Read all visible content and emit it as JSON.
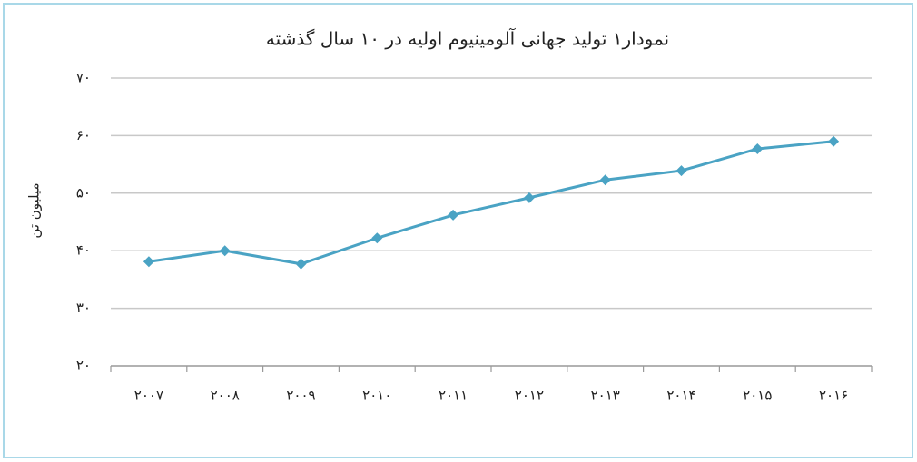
{
  "chart_data": {
    "type": "line",
    "title": "نمودار۱  تولید جهانی آلومینیوم اولیه در ۱۰ سال گذشته",
    "y_label": "میلیون تن",
    "categories": [
      "۲۰۰۷",
      "۲۰۰۸",
      "۲۰۰۹",
      "۲۰۱۰",
      "۲۰۱۱",
      "۲۰۱۲",
      "۲۰۱۳",
      "۲۰۱۴",
      "۲۰۱۵",
      "۲۰۱۶"
    ],
    "values": [
      38.1,
      40.0,
      37.7,
      42.2,
      46.2,
      49.2,
      52.3,
      53.9,
      57.7,
      59.0
    ],
    "color": "#4aa3c4",
    "ylim": [
      20,
      70
    ],
    "yticks": [
      {
        "value": 20,
        "label": "۲۰"
      },
      {
        "value": 30,
        "label": "۳۰"
      },
      {
        "value": 40,
        "label": "۴۰"
      },
      {
        "value": 50,
        "label": "۵۰"
      },
      {
        "value": 60,
        "label": "۶۰"
      },
      {
        "value": 70,
        "label": "۷۰"
      }
    ],
    "grid": true
  }
}
